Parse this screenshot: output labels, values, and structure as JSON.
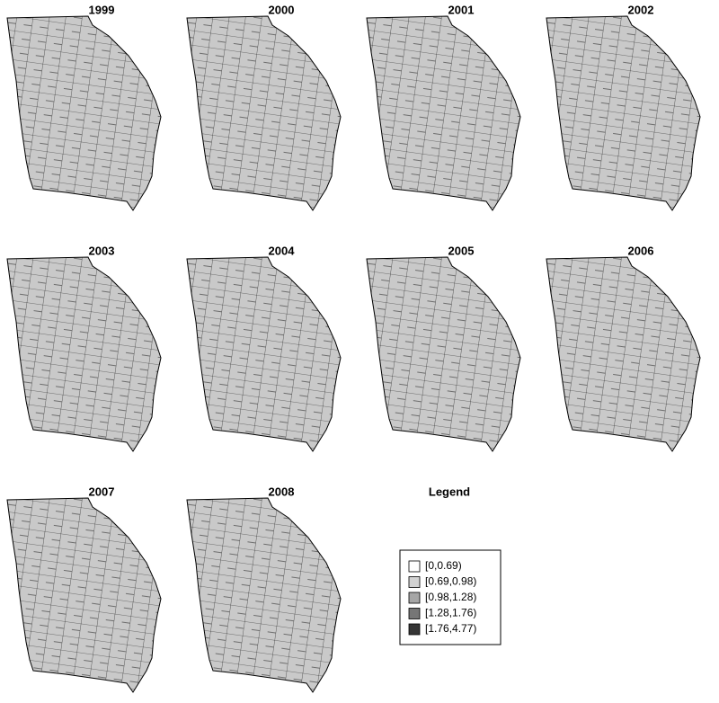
{
  "maps": [
    {
      "title": "1999"
    },
    {
      "title": "2000"
    },
    {
      "title": "2001"
    },
    {
      "title": "2002"
    },
    {
      "title": "2003"
    },
    {
      "title": "2004"
    },
    {
      "title": "2005"
    },
    {
      "title": "2006"
    },
    {
      "title": "2007"
    },
    {
      "title": "2008"
    }
  ],
  "legend": {
    "title": "Legend",
    "items": [
      {
        "label": "[0,0.69)",
        "color": "#ffffff"
      },
      {
        "label": "[0.69,0.98)",
        "color": "#d2d2d2"
      },
      {
        "label": "[0.98,1.28)",
        "color": "#a6a6a6"
      },
      {
        "label": "[1.28,1.76)",
        "color": "#767676"
      },
      {
        "label": "[1.76,4.77)",
        "color": "#363636"
      }
    ]
  }
}
